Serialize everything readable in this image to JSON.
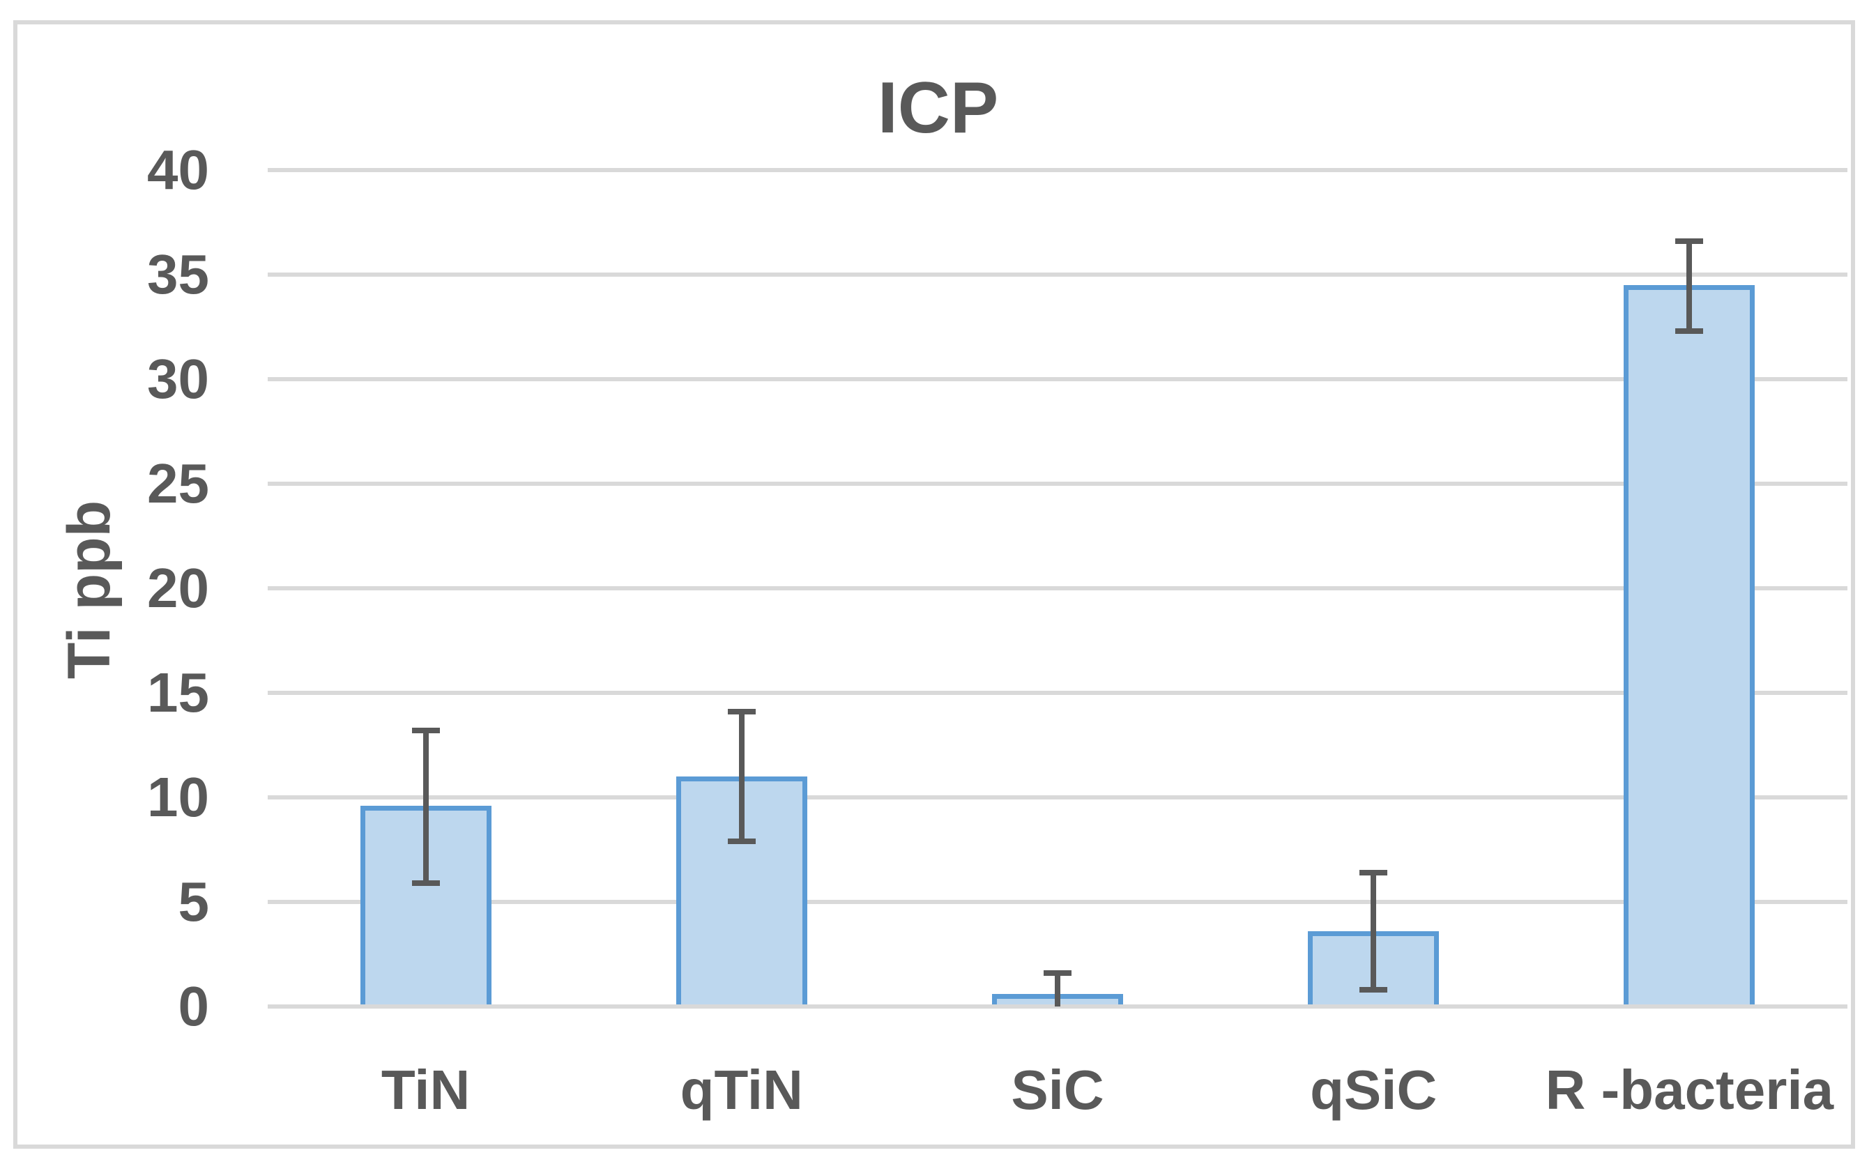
{
  "figure": {
    "title": "ICP",
    "y_axis_title": "Ti ppb"
  },
  "chart_data": {
    "type": "bar",
    "title": "ICP",
    "xlabel": "",
    "ylabel": "Ti ppb",
    "categories": [
      "TiN",
      "qTiN",
      "SiC",
      "qSiC",
      "R -bacteria"
    ],
    "series": [
      {
        "name": "Ti ppb",
        "values": [
          9.6,
          11.0,
          0.6,
          3.6,
          34.5
        ],
        "error_upper_abs": [
          13.2,
          14.1,
          1.6,
          6.4,
          36.6
        ],
        "error_lower_abs": [
          5.9,
          7.9,
          0.0,
          0.8,
          32.3
        ]
      }
    ],
    "ylim": [
      0,
      40
    ],
    "yticks": [
      0,
      5,
      10,
      15,
      20,
      25,
      30,
      35,
      40
    ],
    "grid": true,
    "legend": "none",
    "colors": {
      "bar_fill": "#BDD7EE",
      "bar_border": "#5B9BD5",
      "error_bar": "#595959",
      "gridline": "#D9D9D9",
      "axis_line": "#D9D9D9",
      "text": "#595959",
      "frame_border": "#D9D9D9",
      "background": "#FFFFFF"
    }
  }
}
